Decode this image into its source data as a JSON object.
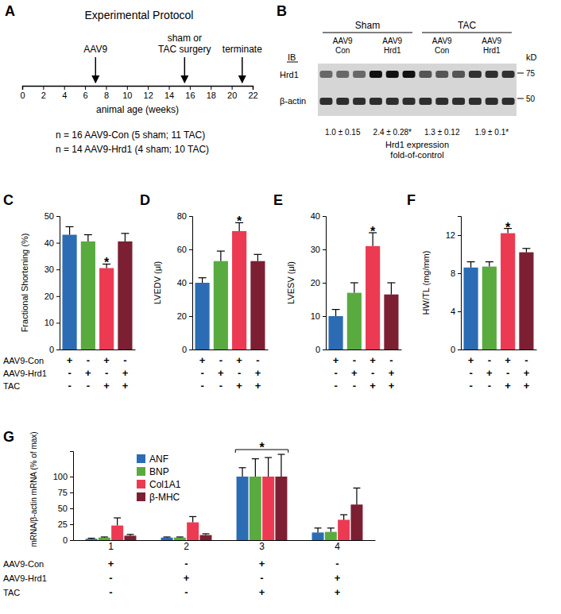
{
  "panel_labels": [
    "A",
    "B",
    "C",
    "D",
    "E",
    "F",
    "G"
  ],
  "protocol": {
    "title": "Experimental Protocol",
    "axis_label": "animal age (weeks)",
    "xlim": [
      0,
      22
    ],
    "ticks": [
      0,
      2,
      4,
      6,
      8,
      10,
      12,
      14,
      16,
      18,
      20,
      22
    ],
    "events": [
      {
        "label": [
          "AAV9"
        ],
        "week": 7
      },
      {
        "label": [
          "sham or",
          "TAC surgery"
        ],
        "week": 15.5
      },
      {
        "label": [
          "terminate"
        ],
        "week": 21
      }
    ],
    "notes": [
      "n = 16 AAV9-Con (5 sham; 11 TAC)",
      "n = 14 AAV9-Hrd1 (4 sham; 10 TAC)"
    ]
  },
  "blot": {
    "groups": [
      "Sham",
      "TAC"
    ],
    "lanes": [
      [
        "AAV9",
        "Con"
      ],
      [
        "AAV9",
        "Hrd1"
      ],
      [
        "AAV9",
        "Con"
      ],
      [
        "AAV9",
        "Hrd1"
      ]
    ],
    "ib_label": "IB",
    "rows": [
      "Hrd1",
      "β-actin"
    ],
    "kd_label": "kD",
    "markers_kd": [
      75,
      50
    ],
    "quantification": [
      {
        "value": 1.0,
        "label": "1.0 ± 0.15"
      },
      {
        "value": 2.4,
        "label": "2.4 ± 0.28*"
      },
      {
        "value": 1.3,
        "label": "1.3 ± 0.12"
      },
      {
        "value": 1.9,
        "label": "1.9 ± 0.1*"
      }
    ],
    "caption": [
      "Hrd1 expression",
      "fold-of-control"
    ]
  },
  "chart_data": [
    {
      "type": "bar",
      "ylabel": "Fractional Shortening (%)",
      "categories": [
        null,
        null,
        null,
        null
      ],
      "values": [
        43,
        40.5,
        30.5,
        40.5
      ],
      "errors": [
        3,
        2.5,
        1.5,
        3
      ],
      "colors": [
        "#2b6cb4",
        "#5aab3f",
        "#ec3a52",
        "#7d1f33"
      ],
      "ylim": [
        0,
        50
      ],
      "yticks": [
        0,
        10,
        20,
        30,
        40,
        50
      ],
      "annotations": [
        {
          "text": "*",
          "category": 2
        }
      ],
      "conditions": {
        "rows": [
          "AAV9-Con",
          "AAV9-Hrd1",
          "TAC"
        ],
        "signs": [
          [
            "+",
            "-",
            "+",
            "-"
          ],
          [
            "-",
            "+",
            "-",
            "+"
          ],
          [
            "-",
            "-",
            "+",
            "+"
          ]
        ]
      }
    },
    {
      "type": "bar",
      "ylabel": "LVEDV (μl)",
      "categories": [
        null,
        null,
        null,
        null
      ],
      "values": [
        40,
        53,
        71,
        53
      ],
      "errors": [
        3,
        6,
        5,
        4
      ],
      "colors": [
        "#2b6cb4",
        "#5aab3f",
        "#ec3a52",
        "#7d1f33"
      ],
      "ylim": [
        0,
        80
      ],
      "yticks": [
        0,
        20,
        40,
        60,
        80
      ],
      "annotations": [
        {
          "text": "*",
          "category": 2
        }
      ],
      "conditions": {
        "signs": [
          [
            "+",
            "-",
            "+",
            "-"
          ],
          [
            "-",
            "+",
            "-",
            "+"
          ],
          [
            "-",
            "-",
            "+",
            "+"
          ]
        ]
      }
    },
    {
      "type": "bar",
      "ylabel": "LVESV (μl)",
      "categories": [
        null,
        null,
        null,
        null
      ],
      "values": [
        10,
        17,
        31,
        16.5
      ],
      "errors": [
        2,
        3,
        4,
        3.5
      ],
      "colors": [
        "#2b6cb4",
        "#5aab3f",
        "#ec3a52",
        "#7d1f33"
      ],
      "ylim": [
        0,
        40
      ],
      "yticks": [
        0,
        10,
        20,
        30,
        40
      ],
      "annotations": [
        {
          "text": "*",
          "category": 2
        }
      ],
      "conditions": {
        "signs": [
          [
            "+",
            "-",
            "+",
            "-"
          ],
          [
            "-",
            "+",
            "-",
            "+"
          ],
          [
            "-",
            "-",
            "+",
            "+"
          ]
        ]
      }
    },
    {
      "type": "bar",
      "ylabel": "HW/TL (mg/mm)",
      "categories": [
        null,
        null,
        null,
        null
      ],
      "values": [
        8.6,
        8.7,
        12.2,
        10.2
      ],
      "errors": [
        0.6,
        0.5,
        0.5,
        0.4
      ],
      "colors": [
        "#2b6cb4",
        "#5aab3f",
        "#ec3a52",
        "#7d1f33"
      ],
      "ylim": [
        0,
        14
      ],
      "yticks": [
        0,
        4,
        8,
        12
      ],
      "annotations": [
        {
          "text": "*",
          "category": 2
        }
      ],
      "conditions": {
        "signs": [
          [
            "+",
            "-",
            "+",
            "-"
          ],
          [
            "-",
            "+",
            "-",
            "+"
          ],
          [
            "-",
            "-",
            "+",
            "+"
          ]
        ]
      }
    },
    {
      "type": "bar",
      "ylabel": "mRNA/β-actin mRNA (% of max)",
      "categories": [
        "1",
        "2",
        "3",
        "4"
      ],
      "series": [
        {
          "name": "ANF",
          "color": "#2b6cb4",
          "values": [
            2,
            4,
            100,
            12
          ],
          "errors": [
            1,
            1,
            14,
            7
          ]
        },
        {
          "name": "BNP",
          "color": "#5aab3f",
          "values": [
            4,
            4,
            100,
            13
          ],
          "errors": [
            1,
            1,
            28,
            6
          ]
        },
        {
          "name": "Col1A1",
          "color": "#ec3a52",
          "values": [
            23,
            28,
            100,
            32
          ],
          "errors": [
            12,
            9,
            30,
            8
          ]
        },
        {
          "name": "β-MHC",
          "color": "#7d1f33",
          "values": [
            7,
            8,
            100,
            56
          ],
          "errors": [
            2,
            2,
            35,
            26
          ]
        }
      ],
      "ylim": [
        0,
        140
      ],
      "yticks": [
        0,
        25,
        50,
        75,
        100
      ],
      "legend": "top-left",
      "annotations": [
        {
          "text": "*",
          "category": 2
        }
      ],
      "conditions": {
        "rows": [
          "AAV9-Con",
          "AAV9-Hrd1",
          "TAC"
        ],
        "signs": [
          [
            "+",
            "-",
            "+",
            "-"
          ],
          [
            "-",
            "+",
            "-",
            "+"
          ],
          [
            "-",
            "-",
            "+",
            "+"
          ]
        ]
      }
    }
  ]
}
